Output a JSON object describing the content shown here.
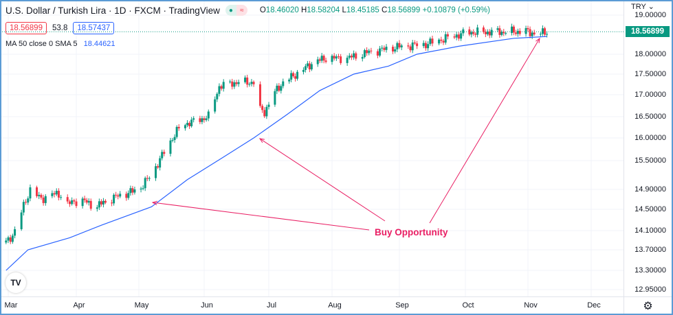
{
  "header": {
    "title": "U.S. Dollar / Turkish Lira · 1D · FXCM · TradingView",
    "status_dot": "market-open-icon",
    "replay_icon": "approx-icon",
    "ohlc": {
      "o_label": "O",
      "o": "18.46020",
      "h_label": "H",
      "h": "18.58204",
      "l_label": "L",
      "l": "18.45185",
      "c_label": "C",
      "c": "18.56899",
      "change": "+0.10879 (+0.59%)"
    }
  },
  "quote": {
    "bid": "18.56899",
    "spread": "53.8",
    "ask": "18.57437"
  },
  "indicator": {
    "label": "MA 50 close 0 SMA 5",
    "value": "18.44621"
  },
  "price_axis": {
    "currency": "TRY",
    "current": "18.56899",
    "ticks": [
      "19.00000",
      "18.00000",
      "17.50000",
      "17.00000",
      "16.50000",
      "16.00000",
      "15.50000",
      "14.90000",
      "14.50000",
      "14.10000",
      "13.70000",
      "13.30000",
      "12.95000"
    ]
  },
  "time_axis": {
    "ticks": [
      "Mar",
      "Apr",
      "May",
      "Jun",
      "Jul",
      "Aug",
      "Sep",
      "Oct",
      "Nov",
      "Dec"
    ]
  },
  "annotation": {
    "text": "Buy Opportunity",
    "color": "#e91e63"
  },
  "colors": {
    "up": "#089981",
    "down": "#f23645",
    "ma": "#2962ff"
  },
  "chart_data": {
    "type": "candlestick",
    "scale": "log",
    "grid": true,
    "ylim": [
      12.9,
      19.1
    ],
    "xlim": [
      "2022-02-28",
      "2022-12-31"
    ],
    "close_path": [
      [
        "2022-02-28",
        13.85
      ],
      [
        "2022-03-03",
        14.0
      ],
      [
        "2022-03-11",
        14.9
      ],
      [
        "2022-03-16",
        14.7
      ],
      [
        "2022-03-20",
        14.8
      ],
      [
        "2022-03-27",
        14.8
      ],
      [
        "2022-03-28",
        14.6
      ],
      [
        "2022-04-03",
        14.7
      ],
      [
        "2022-04-10",
        14.55
      ],
      [
        "2022-04-20",
        14.75
      ],
      [
        "2022-05-01",
        14.9
      ],
      [
        "2022-05-07",
        15.2
      ],
      [
        "2022-05-15",
        15.85
      ],
      [
        "2022-05-21",
        16.3
      ],
      [
        "2022-05-28",
        16.4
      ],
      [
        "2022-06-03",
        16.5
      ],
      [
        "2022-06-08",
        17.2
      ],
      [
        "2022-06-16",
        17.3
      ],
      [
        "2022-06-24",
        17.3
      ],
      [
        "2022-06-25",
        16.7
      ],
      [
        "2022-06-29",
        16.6
      ],
      [
        "2022-07-03",
        17.0
      ],
      [
        "2022-07-08",
        17.3
      ],
      [
        "2022-07-16",
        17.55
      ],
      [
        "2022-07-23",
        17.8
      ],
      [
        "2022-07-29",
        17.9
      ],
      [
        "2022-08-08",
        17.9
      ],
      [
        "2022-08-18",
        18.05
      ],
      [
        "2022-08-31",
        18.18
      ],
      [
        "2022-09-13",
        18.25
      ],
      [
        "2022-09-22",
        18.4
      ],
      [
        "2022-10-02",
        18.55
      ],
      [
        "2022-10-15",
        18.56
      ],
      [
        "2022-10-31",
        18.58
      ],
      [
        "2022-11-06",
        18.5
      ],
      [
        "2022-11-10",
        18.569
      ]
    ],
    "ma50": [
      [
        "2022-02-28",
        13.3
      ],
      [
        "2022-03-10",
        13.7
      ],
      [
        "2022-03-29",
        13.95
      ],
      [
        "2022-04-13",
        14.2
      ],
      [
        "2022-05-07",
        14.55
      ],
      [
        "2022-05-24",
        15.1
      ],
      [
        "2022-06-09",
        15.55
      ],
      [
        "2022-06-24",
        16.0
      ],
      [
        "2022-07-10",
        16.55
      ],
      [
        "2022-07-26",
        17.1
      ],
      [
        "2022-08-11",
        17.5
      ],
      [
        "2022-08-27",
        17.7
      ],
      [
        "2022-09-09",
        18.0
      ],
      [
        "2022-09-28",
        18.2
      ],
      [
        "2022-10-25",
        18.4
      ],
      [
        "2022-11-10",
        18.446
      ]
    ]
  }
}
